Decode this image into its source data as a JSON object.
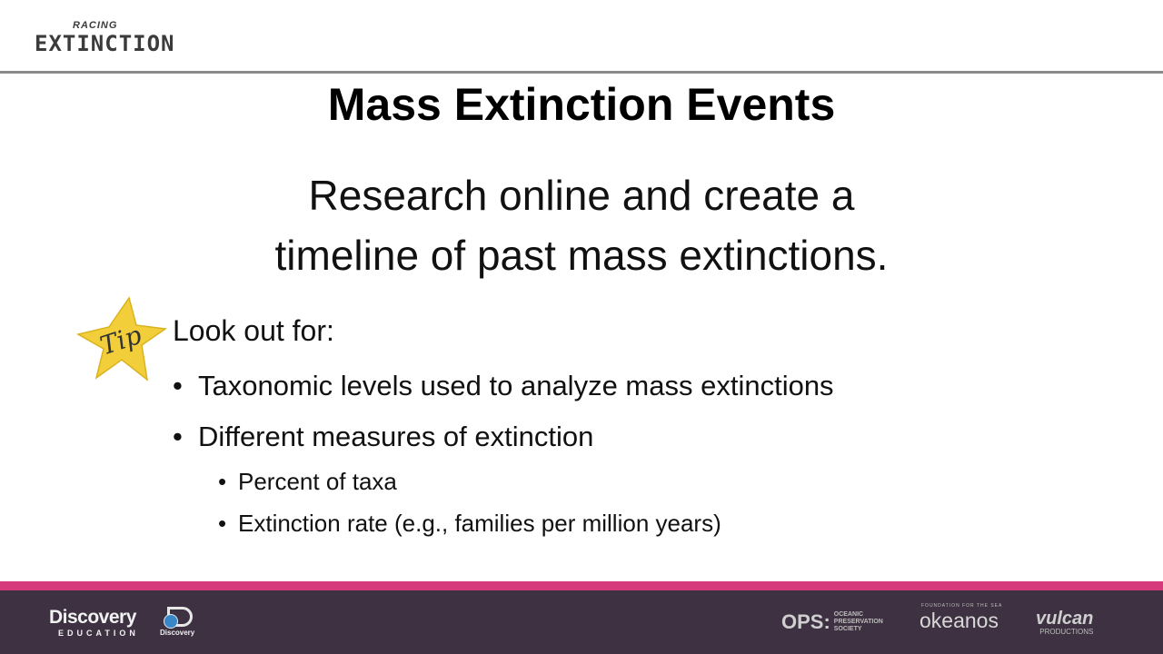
{
  "header": {
    "logo_small": "RACING",
    "logo_big": "EXTINCTION"
  },
  "slide": {
    "title": "Mass Extinction Events",
    "subtitle_line1": "Research online and create a",
    "subtitle_line2": "timeline of past mass extinctions.",
    "tip_label": "Tip",
    "lookout": "Look out for:",
    "bullets": [
      "Taxonomic levels used to analyze mass extinctions",
      "Different measures of extinction"
    ],
    "sub_bullets": [
      "Percent of taxa",
      "Extinction rate (e.g., families per million years)"
    ]
  },
  "footer": {
    "discovery_top": "Discovery",
    "discovery_bottom": "EDUCATION",
    "discovery_channel": "Discovery",
    "ops_mark": "OPS:",
    "ops_line1": "OCEANIC",
    "ops_line2": "PRESERVATION",
    "ops_line3": "SOCIETY",
    "okeanos_pre": "FOUNDATION FOR THE SEA",
    "okeanos": "okeanos",
    "vulcan": "vulcan",
    "vulcan_sub": "PRODUCTIONS"
  },
  "colors": {
    "footer_bg": "#3e3242",
    "footer_accent": "#d63a7b",
    "star": "#f2cf3a",
    "header_rule": "#8a8a8a"
  }
}
